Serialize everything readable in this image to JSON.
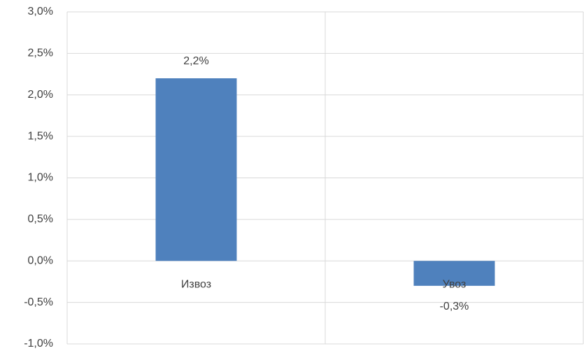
{
  "chart_data": {
    "type": "bar",
    "categories": [
      "Извоз",
      "Увоз"
    ],
    "values": [
      2.2,
      -0.3
    ],
    "value_labels": [
      "2,2%",
      "-0,3%"
    ],
    "color": "#4f81bd",
    "ylim": [
      -1,
      3
    ],
    "yticks": [
      {
        "value": -1,
        "label": "-1,0%"
      },
      {
        "value": -0.5,
        "label": "-0,5%"
      },
      {
        "value": 0,
        "label": "0,0%"
      },
      {
        "value": 0.5,
        "label": "0,5%"
      },
      {
        "value": 1,
        "label": "1,0%"
      },
      {
        "value": 1.5,
        "label": "1,5%"
      },
      {
        "value": 2,
        "label": "2,0%"
      },
      {
        "value": 2.5,
        "label": "2,5%"
      },
      {
        "value": 3,
        "label": "3,0%"
      }
    ],
    "grid": true
  }
}
